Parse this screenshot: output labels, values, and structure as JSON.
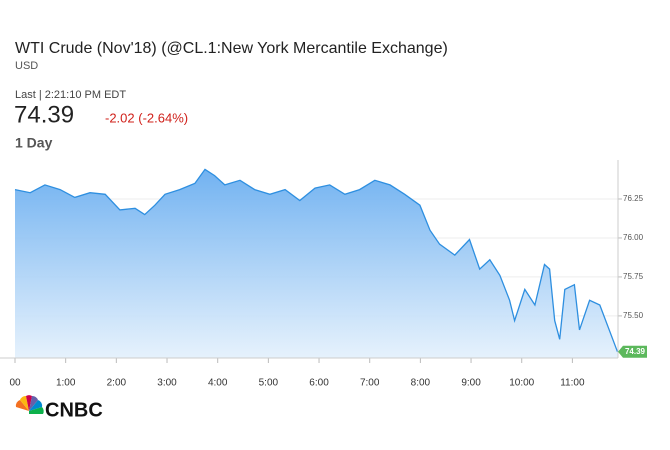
{
  "chart_data": {
    "type": "area",
    "title": "WTI Crude (Nov'18) (@CL.1:New York Mercantile Exchange)",
    "subtitle": "USD",
    "last_updated": "Last | 2:21:10 PM EDT",
    "price": "74.39",
    "change": "-2.02 (-2.64%)",
    "period": "1 Day",
    "logo": "CNBC",
    "color": "#2e8fe0",
    "change_color": "#d0201a",
    "tag_color": "#5cb85c",
    "grid": true,
    "x": [
      0,
      0.3,
      0.59,
      0.89,
      1.18,
      1.48,
      1.78,
      2.07,
      2.37,
      2.56,
      2.76,
      2.96,
      3.25,
      3.55,
      3.75,
      3.94,
      4.14,
      4.44,
      4.73,
      5.03,
      5.33,
      5.62,
      5.92,
      6.21,
      6.51,
      6.8,
      7.1,
      7.4,
      7.69,
      7.99,
      8.19,
      8.38,
      8.68,
      8.97,
      9.17,
      9.37,
      9.57,
      9.76,
      9.86,
      10.06,
      10.26,
      10.45,
      10.55,
      10.65,
      10.75,
      10.85,
      11.04,
      11.14,
      11.34,
      11.54,
      11.89
    ],
    "values": [
      76.31,
      76.29,
      76.34,
      76.31,
      76.26,
      76.29,
      76.28,
      76.18,
      76.19,
      76.15,
      76.21,
      76.28,
      76.31,
      76.35,
      76.44,
      76.4,
      76.34,
      76.37,
      76.31,
      76.28,
      76.31,
      76.24,
      76.32,
      76.34,
      76.28,
      76.31,
      76.37,
      76.34,
      76.28,
      76.21,
      76.05,
      75.96,
      75.89,
      75.99,
      75.8,
      75.86,
      75.76,
      75.6,
      75.47,
      75.67,
      75.57,
      75.83,
      75.8,
      75.47,
      75.35,
      75.67,
      75.7,
      75.41,
      75.6,
      75.57,
      75.27
    ],
    "xlim": [
      0,
      11.9
    ],
    "ylim": [
      75.23,
      76.5
    ],
    "xticks": [
      {
        "value": 0,
        "label": "00"
      },
      {
        "value": 1,
        "label": "1:00"
      },
      {
        "value": 2,
        "label": "2:00"
      },
      {
        "value": 3,
        "label": "3:00"
      },
      {
        "value": 4,
        "label": "4:00"
      },
      {
        "value": 5,
        "label": "5:00"
      },
      {
        "value": 6,
        "label": "6:00"
      },
      {
        "value": 7,
        "label": "7:00"
      },
      {
        "value": 8,
        "label": "8:00"
      },
      {
        "value": 9,
        "label": "9:00"
      },
      {
        "value": 10,
        "label": "10:00"
      },
      {
        "value": 11,
        "label": "11:00"
      }
    ],
    "yticks": [
      {
        "value": 75.5,
        "label": "75.50"
      },
      {
        "value": 75.75,
        "label": "75.75"
      },
      {
        "value": 76,
        "label": "76.00"
      },
      {
        "value": 76.25,
        "label": "76.25"
      }
    ]
  }
}
